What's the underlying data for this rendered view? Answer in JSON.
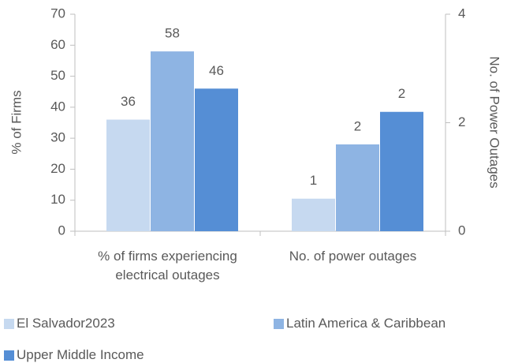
{
  "chart_data": {
    "type": "bar",
    "categories": [
      "% of firms experiencing electrical outages",
      "No. of power outages"
    ],
    "category_axes": [
      "y",
      "y2"
    ],
    "y_label": "% of Firms",
    "y2_label": "No. of Power Outages",
    "series": [
      {
        "name": "El Salvador2023",
        "color": "#c6d9f0",
        "values": [
          36,
          0.6
        ],
        "value_labels": [
          "36",
          "1"
        ]
      },
      {
        "name": "Latin America & Caribbean",
        "color": "#8eb4e3",
        "values": [
          58,
          1.6
        ],
        "value_labels": [
          "58",
          "2"
        ]
      },
      {
        "name": "Upper Middle Income",
        "color": "#558ed5",
        "values": [
          46,
          2.2
        ],
        "value_labels": [
          "46",
          "2"
        ]
      }
    ],
    "ylim": [
      0,
      70
    ],
    "yticks": [
      0,
      10,
      20,
      30,
      40,
      50,
      60,
      70
    ],
    "y2lim": [
      0,
      4
    ],
    "y2ticks": [
      0,
      2,
      4
    ]
  }
}
